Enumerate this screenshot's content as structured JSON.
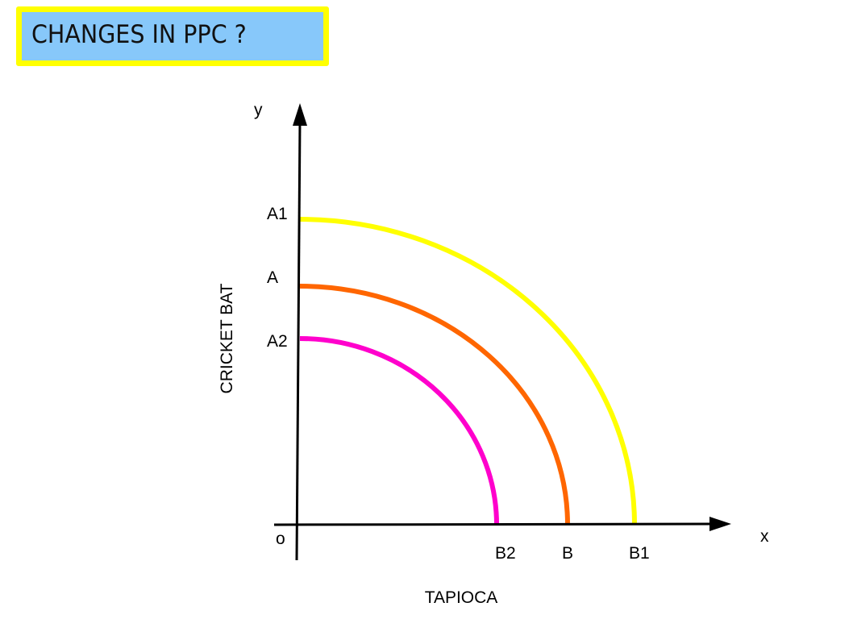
{
  "title": "CHANGES IN PPC ?",
  "axes": {
    "y_symbol": "y",
    "x_symbol": "x",
    "origin": "o",
    "y_label": "CRICKET BAT",
    "x_label": "TAPIOCA"
  },
  "curves": [
    {
      "name": "A1-B1",
      "start_label": "A1",
      "end_label": "B1",
      "color": "#ffff00"
    },
    {
      "name": "A-B",
      "start_label": "A",
      "end_label": "B",
      "color": "#ff6600"
    },
    {
      "name": "A2-B2",
      "start_label": "A2",
      "end_label": "B2",
      "color": "#ff00cc"
    }
  ]
}
